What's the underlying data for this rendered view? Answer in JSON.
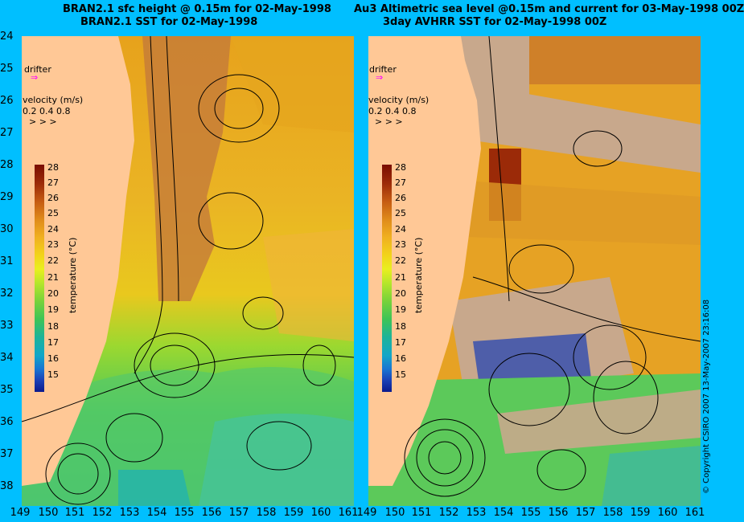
{
  "left_panel": {
    "title_line1": "BRAN2.1 sfc height @ 0.15m for 02-May-1998",
    "title_line2": "BRAN2.1 SST for 02-May-1998"
  },
  "right_panel": {
    "title_line1": "Au3 Altimetric sea level  @0.15m and current for 03-May-1998 00Z",
    "title_line2": "3day AVHRR SST for 02-May-1998 00Z"
  },
  "latitudes": [
    "24",
    "25",
    "26",
    "27",
    "28",
    "29",
    "30",
    "31",
    "32",
    "33",
    "34",
    "35",
    "36",
    "37",
    "38"
  ],
  "longitudes": [
    "149",
    "150",
    "151",
    "152",
    "153",
    "154",
    "155",
    "156",
    "157",
    "158",
    "159",
    "160",
    "161"
  ],
  "colorbar": {
    "ticks": [
      "28",
      "27",
      "26",
      "25",
      "24",
      "23",
      "22",
      "21",
      "20",
      "19",
      "18",
      "17",
      "16",
      "15"
    ],
    "label": "temperature (°C)",
    "colors": [
      "#7a0d00",
      "#9b2a08",
      "#c45a12",
      "#df8a1a",
      "#f0b020",
      "#f2d41a",
      "#e9ef1f",
      "#b7e62a",
      "#78d23a",
      "#3ec456",
      "#1db39a",
      "#12a6c8",
      "#1874d2",
      "#1a3fb5",
      "#0c1a8c"
    ]
  },
  "legend": {
    "drifter_label": "drifter",
    "velocity_label": "velocity (m/s)",
    "velocity_values": "0.2 0.4 0.8"
  },
  "copyright": "© Copyright CSIRO 2007   13-May-2007 23:16:08",
  "colors": {
    "background": "#00bfff",
    "land": "#ffc896",
    "missing_data": "#c8a88c"
  }
}
